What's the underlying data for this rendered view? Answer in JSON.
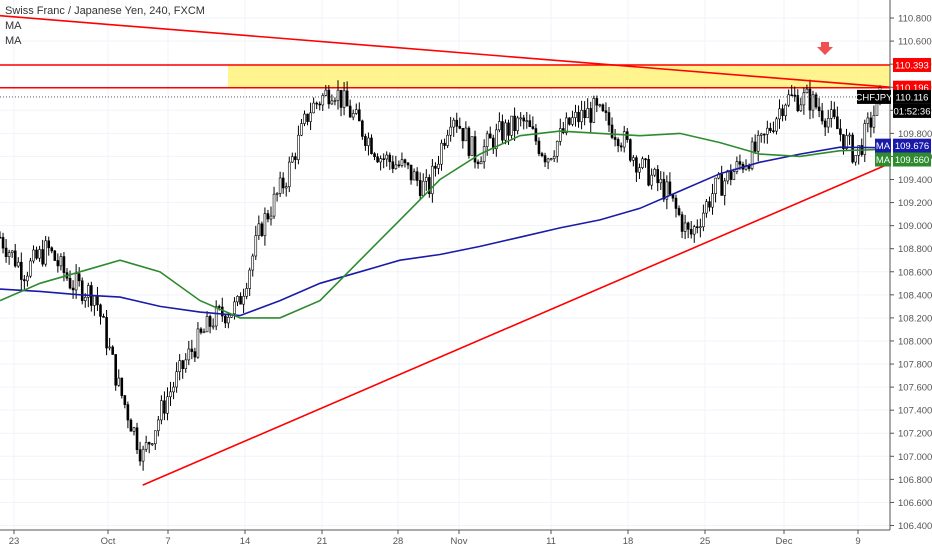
{
  "legend": {
    "title": "Swiss Franc / Japanese Yen, 240, FXCM",
    "ma1": "MA",
    "ma2": "MA"
  },
  "colors": {
    "background": "#ffffff",
    "grid": "#f0f3fa",
    "candle": "#000000",
    "ma_blue": "#1a1aa8",
    "ma_green": "#2e8b2e",
    "trendline": "#ff0000",
    "zone_fill": "#fff27a",
    "arrow": "#f05050",
    "axis_text": "#555555"
  },
  "chart_data": {
    "type": "line",
    "symbol": "CHFJPY",
    "timeframe": "240",
    "ylim": [
      106.4,
      110.9
    ],
    "y_ticks": [
      "110.800",
      "110.600",
      "110.400",
      "110.200",
      "110.000",
      "109.800",
      "109.600",
      "109.400",
      "109.200",
      "109.000",
      "108.800",
      "108.600",
      "108.400",
      "108.200",
      "108.000",
      "107.800",
      "107.600",
      "107.400",
      "107.200",
      "107.000",
      "106.800",
      "106.600",
      "106.400"
    ],
    "x_ticks": [
      "23",
      "Oct",
      "7",
      "14",
      "21",
      "28",
      "Nov",
      "11",
      "18",
      "25",
      "Dec",
      "9"
    ],
    "price_points": [
      {
        "t": "Sep 20",
        "price": 108.9
      },
      {
        "t": "Sep 23",
        "price": 108.6
      },
      {
        "t": "Sep 26",
        "price": 108.8
      },
      {
        "t": "Sep 30",
        "price": 108.5
      },
      {
        "t": "Oct 1",
        "price": 108.4
      },
      {
        "t": "Oct 3",
        "price": 107.6
      },
      {
        "t": "Oct 5",
        "price": 107.0
      },
      {
        "t": "Oct 7",
        "price": 107.5
      },
      {
        "t": "Oct 9",
        "price": 107.9
      },
      {
        "t": "Oct 11",
        "price": 108.2
      },
      {
        "t": "Oct 14",
        "price": 108.3
      },
      {
        "t": "Oct 16",
        "price": 109.0
      },
      {
        "t": "Oct 18",
        "price": 109.4
      },
      {
        "t": "Oct 20",
        "price": 110.0
      },
      {
        "t": "Oct 21",
        "price": 110.2
      },
      {
        "t": "Oct 23",
        "price": 109.9
      },
      {
        "t": "Oct 25",
        "price": 109.6
      },
      {
        "t": "Oct 28",
        "price": 109.5
      },
      {
        "t": "Oct 30",
        "price": 109.3
      },
      {
        "t": "Nov 1",
        "price": 110.0
      },
      {
        "t": "Nov 3",
        "price": 109.6
      },
      {
        "t": "Nov 5",
        "price": 109.8
      },
      {
        "t": "Nov 8",
        "price": 109.9
      },
      {
        "t": "Nov 11",
        "price": 109.6
      },
      {
        "t": "Nov 13",
        "price": 109.9
      },
      {
        "t": "Nov 15",
        "price": 110.0
      },
      {
        "t": "Nov 18",
        "price": 109.8
      },
      {
        "t": "Nov 20",
        "price": 109.5
      },
      {
        "t": "Nov 22",
        "price": 109.3
      },
      {
        "t": "Nov 25",
        "price": 108.9
      },
      {
        "t": "Nov 27",
        "price": 109.3
      },
      {
        "t": "Nov 29",
        "price": 109.5
      },
      {
        "t": "Dec 2",
        "price": 109.7
      },
      {
        "t": "Dec 3",
        "price": 110.1
      },
      {
        "t": "Dec 5",
        "price": 110.1
      },
      {
        "t": "Dec 7",
        "price": 109.9
      },
      {
        "t": "Dec 8",
        "price": 109.6
      },
      {
        "t": "Dec 10",
        "price": 110.1
      }
    ],
    "series": [
      {
        "key": "ma_blue",
        "values": [
          108.45,
          108.43,
          108.4,
          108.38,
          108.3,
          108.25,
          108.22,
          108.35,
          108.5,
          108.6,
          108.7,
          108.75,
          108.82,
          108.9,
          108.98,
          109.05,
          109.15,
          109.3,
          109.45,
          109.55,
          109.62,
          109.68,
          109.676
        ]
      },
      {
        "key": "ma_green",
        "values": [
          108.35,
          108.5,
          108.6,
          108.7,
          108.6,
          108.35,
          108.2,
          108.2,
          108.35,
          108.7,
          109.05,
          109.4,
          109.62,
          109.78,
          109.82,
          109.8,
          109.78,
          109.8,
          109.72,
          109.62,
          109.6,
          109.65,
          109.66
        ]
      }
    ],
    "annotations": {
      "resistance_upper": "110.393",
      "resistance_lower": "110.196",
      "current_label": "CHFJPY",
      "current_price": "110.116",
      "countdown": "01:52:36",
      "ma1_label": "MA",
      "ma1_value": "109.676",
      "ma2_label": "MA",
      "ma2_value": "109.660"
    },
    "trendlines": [
      {
        "name": "descending-resistance",
        "from": {
          "t": "Sep 17",
          "price": 110.82
        },
        "to": {
          "t": "Dec 10",
          "price": 110.2
        }
      },
      {
        "name": "ascending-support",
        "from": {
          "t": "Oct 5",
          "price": 106.75
        },
        "to": {
          "t": "Dec 10",
          "price": 109.54
        }
      }
    ],
    "zone": {
      "price_low": 110.196,
      "price_high": 110.393,
      "from": "Oct 12"
    }
  }
}
